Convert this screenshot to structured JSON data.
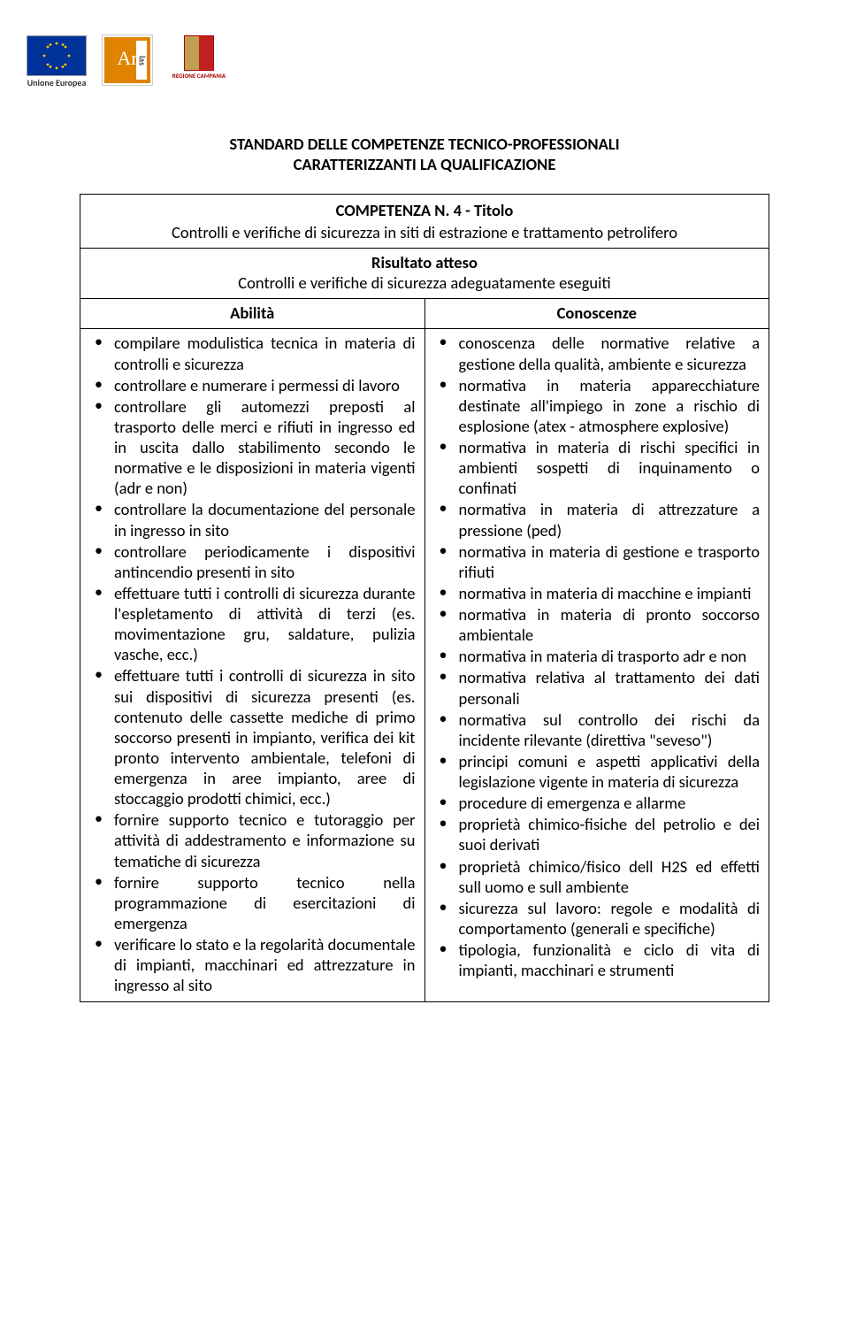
{
  "logos": {
    "eu_caption": "Unione Europea",
    "campania_caption": "REGIONE CAMPANIA",
    "arlas_main": "Ar",
    "arlas_side": "las"
  },
  "title": {
    "line1": "STANDARD DELLE COMPETENZE TECNICO-PROFESSIONALI",
    "line2": "CARATTERIZZANTI LA QUALIFICAZIONE"
  },
  "competenza": {
    "header": "COMPETENZA N. 4 - Titolo",
    "subtitle": "Controlli e verifiche di sicurezza in siti di estrazione e trattamento petrolifero",
    "risultato_label": "Risultato atteso",
    "risultato_text": "Controlli e verifiche di sicurezza adeguatamente eseguiti",
    "col_abilita": "Abilità",
    "col_conoscenze": "Conoscenze"
  },
  "abilita": [
    "compilare modulistica tecnica in materia di controlli e sicurezza",
    "controllare e numerare i permessi di lavoro",
    "controllare gli automezzi preposti al trasporto delle merci e rifiuti in ingresso ed in uscita dallo stabilimento secondo le normative e le disposizioni in materia vigenti (adr e non)",
    "controllare la documentazione del personale in ingresso in sito",
    "controllare periodicamente i dispositivi antincendio presenti in sito",
    "effettuare tutti i controlli di sicurezza durante l'espletamento di attività di terzi (es. movimentazione gru, saldature, pulizia vasche, ecc.)",
    "effettuare tutti i controlli di sicurezza in sito sui dispositivi di sicurezza presenti (es. contenuto delle cassette mediche di primo soccorso presenti in impianto, verifica dei kit pronto intervento ambientale, telefoni di emergenza in aree impianto, aree di stoccaggio prodotti chimici, ecc.)",
    "fornire supporto tecnico e tutoraggio per attività di addestramento e informazione su tematiche di sicurezza",
    "fornire supporto tecnico nella programmazione di esercitazioni di emergenza",
    "verificare lo stato e la regolarità documentale di impianti, macchinari ed attrezzature in ingresso al sito"
  ],
  "conoscenze": [
    "conoscenza delle normative relative a gestione della qualità, ambiente e sicurezza",
    "normativa in materia apparecchiature destinate all'impiego in zone a rischio di esplosione (atex - atmosphere explosive)",
    "normativa in materia di rischi specifici in ambienti sospetti di inquinamento o confinati",
    "normativa in materia di attrezzature a pressione (ped)",
    "normativa in materia di gestione e trasporto rifiuti",
    "normativa in materia di macchine e impianti",
    "normativa in materia di pronto soccorso ambientale",
    "normativa in materia di trasporto adr e non",
    "normativa relativa al trattamento dei dati personali",
    "normativa sul controllo dei rischi da incidente rilevante (direttiva \"seveso\")",
    "principi comuni e aspetti applicativi della legislazione vigente in materia di sicurezza",
    "procedure di emergenza e allarme",
    "proprietà chimico-fisiche del petrolio e dei suoi derivati",
    "proprietà chimico/fisico dell H2S ed effetti sull uomo e sull ambiente",
    "sicurezza sul lavoro: regole e modalità di comportamento (generali e specifiche)",
    "tipologia, funzionalità e ciclo di vita di impianti, macchinari e strumenti"
  ]
}
